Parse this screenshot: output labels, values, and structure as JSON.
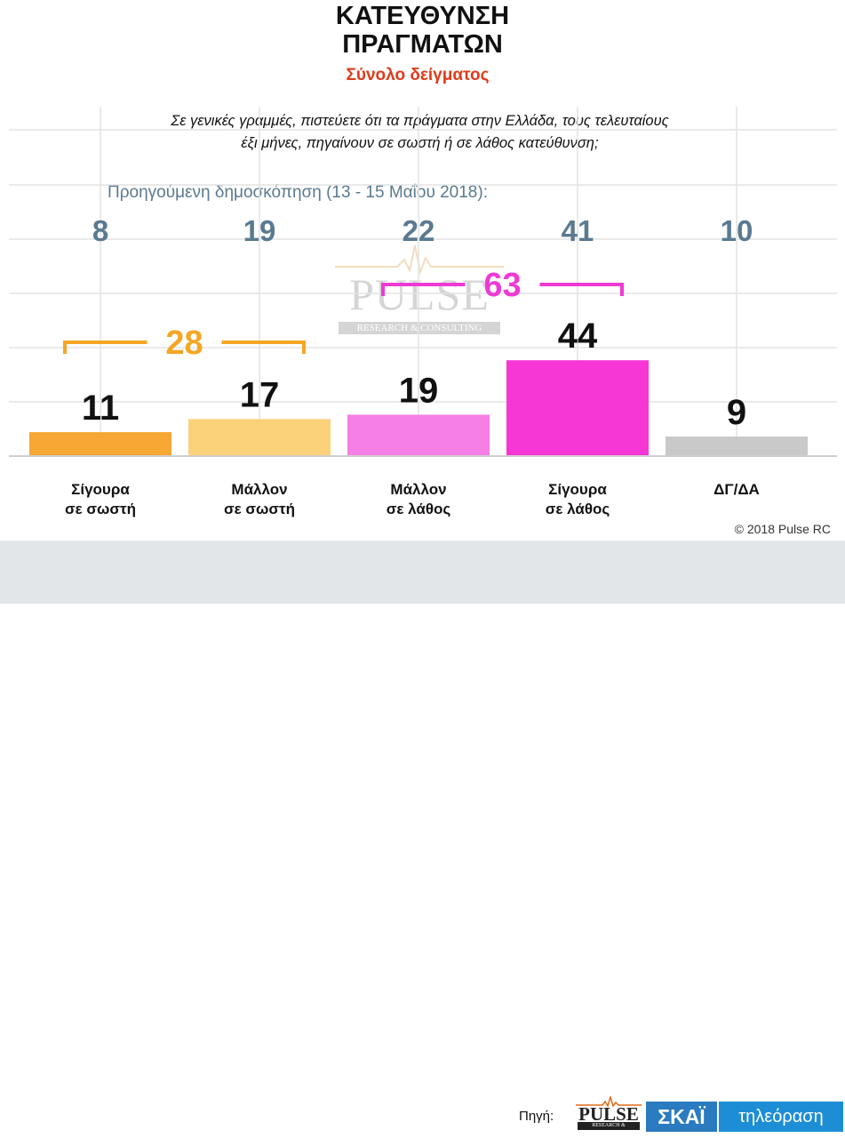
{
  "header": {
    "title_line1": "ΚΑΤΕΥΘΥΝΣΗ",
    "title_line2": "ΠΡΑΓΜΑΤΩΝ",
    "subtitle": "Σύνολο δείγματος"
  },
  "question": {
    "line1": "Σε γενικές γραμμές, πιστεύετε ότι τα πράγματα στην Ελλάδα, τους τελευταίους",
    "line2": "έξι μήνες, πηγαίνουν σε σωστή ή σε λάθος κατεύθυνση;"
  },
  "previous_survey_label": "Προηγούμενη δημοσκόπηση (13 - 15 Μαΐου 2018):",
  "watermark": {
    "text": "PULSE",
    "subtext": "RESEARCH & CONSULTING"
  },
  "chart_data": {
    "type": "bar",
    "categories": [
      [
        "Σίγουρα",
        "σε σωστή"
      ],
      [
        "Μάλλον",
        "σε σωστή"
      ],
      [
        "Μάλλον",
        "σε λάθος"
      ],
      [
        "Σίγουρα",
        "σε λάθος"
      ],
      [
        "ΔΓ/ΔΑ"
      ]
    ],
    "values": [
      11,
      17,
      19,
      44,
      9
    ],
    "previous_values": [
      8,
      19,
      22,
      41,
      10
    ],
    "colors": [
      "#f7a733",
      "#fbd179",
      "#f57fe5",
      "#f736d6",
      "#c9c9c9"
    ],
    "groups": [
      {
        "total": 28,
        "from": 0,
        "to": 1,
        "color": "#f5a623"
      },
      {
        "total": 63,
        "from": 2,
        "to": 3,
        "color": "#ee3ad4"
      }
    ],
    "previous_color": "#5a7a90",
    "grid": true
  },
  "copyright": "© 2018 Pulse RC",
  "footer": {
    "source_label": "Πηγή:",
    "pulse_logo": "PULSE",
    "pulse_logo_sub": "RESEARCH & CONSULTING",
    "skai_logo": "ΣΚΑΪ",
    "skai_tv": "τηλεόραση"
  }
}
